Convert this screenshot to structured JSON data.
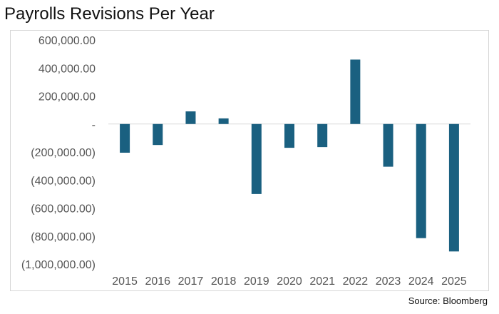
{
  "chart_data": {
    "type": "bar",
    "title": "Payrolls Revisions Per Year",
    "source": "Source: Bloomberg",
    "categories": [
      "2015",
      "2016",
      "2017",
      "2018",
      "2019",
      "2020",
      "2021",
      "2022",
      "2023",
      "2024",
      "2025"
    ],
    "values": [
      -205000,
      -150000,
      90000,
      40000,
      -500000,
      -170000,
      -165000,
      460000,
      -305000,
      -815000,
      -910000
    ],
    "ylim": [
      -1000000,
      600000
    ],
    "yticks": [
      600000,
      400000,
      200000,
      0,
      -200000,
      -400000,
      -600000,
      -800000,
      -1000000
    ],
    "ytick_labels": [
      "600,000.00",
      "400,000.00",
      "200,000.00",
      "-",
      "(200,000.00)",
      "(400,000.00)",
      "(600,000.00)",
      "(800,000.00)",
      "(1,000,000.00)"
    ],
    "xlabel": "",
    "ylabel": "",
    "bar_color": "#1a6080",
    "grid": false,
    "legend": "none"
  }
}
